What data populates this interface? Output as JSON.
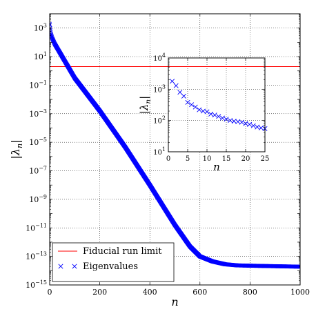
{
  "chart_data": [
    {
      "id": "main",
      "type": "scatter",
      "title": "",
      "xlabel": "n",
      "ylabel": "|λ_n|",
      "xlim": [
        0,
        1000
      ],
      "ylim_log10": [
        -15,
        4
      ],
      "yscale": "log",
      "grid": true,
      "x_ticks": [
        0,
        200,
        400,
        600,
        800,
        1000
      ],
      "x_tick_labels": [
        "0",
        "200",
        "400",
        "600",
        "800",
        "1000"
      ],
      "y_ticks_log10": [
        -15,
        -13,
        -11,
        -9,
        -7,
        -5,
        -3,
        -1,
        1,
        3
      ],
      "y_tick_labels": [
        {
          "base": "10",
          "exp": "−15"
        },
        {
          "base": "10",
          "exp": "−13"
        },
        {
          "base": "10",
          "exp": "−11"
        },
        {
          "base": "10",
          "exp": "−9"
        },
        {
          "base": "10",
          "exp": "−7"
        },
        {
          "base": "10",
          "exp": "−5"
        },
        {
          "base": "10",
          "exp": "−3"
        },
        {
          "base": "10",
          "exp": "−1"
        },
        {
          "base": "10",
          "exp": "1"
        },
        {
          "base": "10",
          "exp": "3"
        }
      ],
      "legend_position": "lower-left",
      "series": [
        {
          "name": "Eigenvalues",
          "kind": "markers",
          "marker": "x",
          "color": "#0000ff",
          "points_log10_curve": [
            [
              0,
              3.3
            ],
            [
              1,
              3.2
            ],
            [
              2,
              3.0
            ],
            [
              5,
              2.6
            ],
            [
              10,
              2.3
            ],
            [
              20,
              1.9
            ],
            [
              40,
              1.3
            ],
            [
              100,
              -0.5
            ],
            [
              200,
              -2.8
            ],
            [
              300,
              -5.3
            ],
            [
              400,
              -8.0
            ],
            [
              500,
              -10.8
            ],
            [
              560,
              -12.3
            ],
            [
              600,
              -13.0
            ],
            [
              650,
              -13.35
            ],
            [
              700,
              -13.55
            ],
            [
              750,
              -13.63
            ],
            [
              850,
              -13.67
            ],
            [
              1000,
              -13.72
            ]
          ],
          "n_range": [
            0,
            1000
          ]
        },
        {
          "name": "Fiducial run limit",
          "kind": "hline",
          "color": "#ff0000",
          "y": 2
        }
      ]
    },
    {
      "id": "inset",
      "type": "scatter",
      "title": "",
      "xlabel": "n",
      "ylabel": "|λ_n|",
      "xlim": [
        0,
        25
      ],
      "ylim_log10": [
        1,
        4
      ],
      "yscale": "log",
      "grid": true,
      "x_ticks": [
        0,
        5,
        10,
        15,
        20,
        25
      ],
      "x_tick_labels": [
        "0",
        "5",
        "10",
        "15",
        "20",
        "25"
      ],
      "y_ticks_log10": [
        1,
        2,
        3,
        4
      ],
      "y_tick_labels": [
        {
          "base": "10",
          "exp": "1"
        },
        {
          "base": "10",
          "exp": "2"
        },
        {
          "base": "10",
          "exp": "3"
        },
        {
          "base": "10",
          "exp": "4"
        }
      ],
      "series": [
        {
          "name": "Eigenvalues",
          "kind": "markers",
          "marker": "x",
          "color": "#0000ff",
          "x": [
            1,
            2,
            3,
            4,
            5,
            6,
            7,
            8,
            9,
            10,
            11,
            12,
            13,
            14,
            15,
            16,
            17,
            18,
            19,
            20,
            21,
            22,
            23,
            24,
            25
          ],
          "y": [
            1800,
            1300,
            800,
            600,
            380,
            320,
            270,
            220,
            200,
            190,
            160,
            150,
            135,
            120,
            110,
            100,
            95,
            92,
            88,
            80,
            75,
            68,
            62,
            58,
            55
          ]
        },
        {
          "name": "Fiducial run limit",
          "kind": "hline",
          "color": "#ff0000",
          "y": 2
        }
      ]
    }
  ],
  "legend": {
    "entries": [
      {
        "label": "Fiducial run limit",
        "symbol": "line",
        "color": "#ff0000"
      },
      {
        "label": "Eigenvalues",
        "symbol": "x",
        "color": "#0000ff"
      }
    ]
  }
}
